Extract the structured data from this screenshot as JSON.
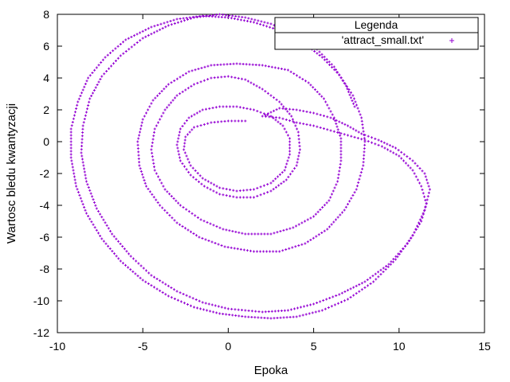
{
  "chart_data": {
    "type": "scatter",
    "title": "",
    "xlabel": "Epoka",
    "ylabel": "Wartosc bledu kwantyzacji",
    "xlim": [
      -10,
      15
    ],
    "ylim": [
      -12,
      8
    ],
    "xticks": [
      -10,
      -5,
      0,
      5,
      10,
      15
    ],
    "yticks": [
      -12,
      -10,
      -8,
      -6,
      -4,
      -2,
      0,
      2,
      4,
      6,
      8
    ],
    "grid": false,
    "legend": {
      "title": "Legenda",
      "placement": "top-right"
    },
    "series": [
      {
        "name": "'attract_small.txt'",
        "color": "#9400d3",
        "marker": "plus",
        "description_points": [
          [
            1.0,
            1.3
          ],
          [
            0.0,
            1.3
          ],
          [
            -1.0,
            1.2
          ],
          [
            -2.0,
            0.9
          ],
          [
            -2.5,
            0.3
          ],
          [
            -2.6,
            -0.5
          ],
          [
            -2.2,
            -1.5
          ],
          [
            -1.5,
            -2.3
          ],
          [
            -0.5,
            -2.9
          ],
          [
            0.5,
            -3.1
          ],
          [
            1.5,
            -3.0
          ],
          [
            2.5,
            -2.6
          ],
          [
            3.3,
            -1.8
          ],
          [
            3.6,
            -0.8
          ],
          [
            3.6,
            0.2
          ],
          [
            3.2,
            1.0
          ],
          [
            2.5,
            1.6
          ],
          [
            1.5,
            2.0
          ],
          [
            0.5,
            2.2
          ],
          [
            -0.5,
            2.2
          ],
          [
            -1.5,
            2.0
          ],
          [
            -2.3,
            1.5
          ],
          [
            -2.8,
            0.8
          ],
          [
            -3.0,
            -0.2
          ],
          [
            -2.8,
            -1.2
          ],
          [
            -2.2,
            -2.1
          ],
          [
            -1.4,
            -2.8
          ],
          [
            -0.5,
            -3.3
          ],
          [
            0.5,
            -3.5
          ],
          [
            1.5,
            -3.5
          ],
          [
            2.5,
            -3.1
          ],
          [
            3.4,
            -2.4
          ],
          [
            4.0,
            -1.5
          ],
          [
            4.2,
            -0.5
          ],
          [
            4.1,
            0.6
          ],
          [
            3.7,
            1.6
          ],
          [
            3.0,
            2.5
          ],
          [
            2.0,
            3.3
          ],
          [
            1.0,
            3.9
          ],
          [
            0.0,
            4.1
          ],
          [
            -1.0,
            4.0
          ],
          [
            -2.0,
            3.6
          ],
          [
            -3.0,
            2.9
          ],
          [
            -3.7,
            2.0
          ],
          [
            -4.3,
            0.8
          ],
          [
            -4.5,
            -0.5
          ],
          [
            -4.3,
            -1.8
          ],
          [
            -3.7,
            -3.0
          ],
          [
            -2.8,
            -4.0
          ],
          [
            -1.6,
            -4.9
          ],
          [
            -0.3,
            -5.5
          ],
          [
            1.0,
            -5.8
          ],
          [
            2.5,
            -5.8
          ],
          [
            3.8,
            -5.4
          ],
          [
            5.0,
            -4.7
          ],
          [
            5.9,
            -3.7
          ],
          [
            6.4,
            -2.5
          ],
          [
            6.6,
            -1.2
          ],
          [
            6.6,
            0.2
          ],
          [
            6.2,
            1.5
          ],
          [
            5.6,
            2.7
          ],
          [
            4.7,
            3.7
          ],
          [
            3.5,
            4.5
          ],
          [
            2.0,
            4.8
          ],
          [
            0.5,
            4.9
          ],
          [
            -1.0,
            4.8
          ],
          [
            -2.3,
            4.4
          ],
          [
            -3.5,
            3.6
          ],
          [
            -4.4,
            2.6
          ],
          [
            -5.0,
            1.4
          ],
          [
            -5.3,
            0.0
          ],
          [
            -5.2,
            -1.5
          ],
          [
            -4.8,
            -2.8
          ],
          [
            -4.0,
            -4.0
          ],
          [
            -3.0,
            -5.1
          ],
          [
            -1.7,
            -6.0
          ],
          [
            -0.2,
            -6.6
          ],
          [
            1.5,
            -6.9
          ],
          [
            3.0,
            -6.9
          ],
          [
            4.5,
            -6.4
          ],
          [
            5.8,
            -5.5
          ],
          [
            6.8,
            -4.3
          ],
          [
            7.5,
            -3.0
          ],
          [
            7.9,
            -1.5
          ],
          [
            8.0,
            0.0
          ],
          [
            7.8,
            1.5
          ],
          [
            7.3,
            2.9
          ],
          [
            6.5,
            4.2
          ],
          [
            5.5,
            5.3
          ],
          [
            4.3,
            6.3
          ],
          [
            3.0,
            7.0
          ],
          [
            1.5,
            7.5
          ],
          [
            0.0,
            7.8
          ],
          [
            -1.5,
            7.9
          ],
          [
            -3.0,
            7.7
          ],
          [
            -4.5,
            7.2
          ],
          [
            -6.0,
            6.4
          ],
          [
            -7.2,
            5.3
          ],
          [
            -8.2,
            4.0
          ],
          [
            -8.8,
            2.5
          ],
          [
            -9.2,
            0.8
          ],
          [
            -9.2,
            -1.0
          ],
          [
            -8.9,
            -2.8
          ],
          [
            -8.3,
            -4.5
          ],
          [
            -7.4,
            -6.1
          ],
          [
            -6.3,
            -7.5
          ],
          [
            -5.0,
            -8.7
          ],
          [
            -3.5,
            -9.7
          ],
          [
            -2.0,
            -10.4
          ],
          [
            -0.5,
            -10.8
          ],
          [
            1.0,
            -11.0
          ],
          [
            2.5,
            -11.1
          ],
          [
            4.0,
            -11.0
          ],
          [
            5.5,
            -10.6
          ],
          [
            7.0,
            -9.9
          ],
          [
            8.5,
            -8.8
          ],
          [
            9.8,
            -7.4
          ],
          [
            10.8,
            -5.9
          ],
          [
            11.5,
            -4.3
          ],
          [
            11.8,
            -3.0
          ],
          [
            11.5,
            -2.0
          ],
          [
            10.8,
            -1.2
          ],
          [
            9.8,
            -0.4
          ],
          [
            8.8,
            0.1
          ],
          [
            7.8,
            0.5
          ],
          [
            7.0,
            1.0
          ],
          [
            6.0,
            1.5
          ],
          [
            5.0,
            1.8
          ],
          [
            4.0,
            2.0
          ],
          [
            3.0,
            2.1
          ],
          [
            2.0,
            1.6
          ],
          [
            3.0,
            1.5
          ],
          [
            4.0,
            1.2
          ],
          [
            5.0,
            1.0
          ],
          [
            6.0,
            0.7
          ],
          [
            7.0,
            0.4
          ],
          [
            8.0,
            0.1
          ],
          [
            9.0,
            -0.3
          ],
          [
            10.0,
            -0.9
          ],
          [
            10.8,
            -1.8
          ],
          [
            11.3,
            -2.8
          ],
          [
            11.6,
            -3.9
          ],
          [
            11.3,
            -5.0
          ],
          [
            10.5,
            -6.4
          ],
          [
            9.4,
            -7.7
          ],
          [
            8.0,
            -8.8
          ],
          [
            6.5,
            -9.6
          ],
          [
            5.0,
            -10.2
          ],
          [
            3.5,
            -10.6
          ],
          [
            2.0,
            -10.7
          ],
          [
            0.0,
            -10.5
          ],
          [
            -1.5,
            -10.1
          ],
          [
            -3.0,
            -9.4
          ],
          [
            -4.5,
            -8.4
          ],
          [
            -5.7,
            -7.2
          ],
          [
            -6.8,
            -5.8
          ],
          [
            -7.7,
            -4.2
          ],
          [
            -8.3,
            -2.5
          ],
          [
            -8.6,
            -0.7
          ],
          [
            -8.5,
            1.0
          ],
          [
            -8.1,
            2.7
          ],
          [
            -7.4,
            4.1
          ],
          [
            -6.3,
            5.4
          ],
          [
            -5.0,
            6.5
          ],
          [
            -3.5,
            7.3
          ],
          [
            -2.0,
            7.8
          ],
          [
            -0.5,
            8.0
          ],
          [
            1.0,
            7.8
          ],
          [
            2.5,
            7.4
          ],
          [
            4.0,
            6.7
          ],
          [
            5.2,
            5.8
          ],
          [
            6.2,
            4.7
          ],
          [
            6.9,
            3.5
          ],
          [
            7.4,
            2.2
          ]
        ]
      }
    ]
  }
}
